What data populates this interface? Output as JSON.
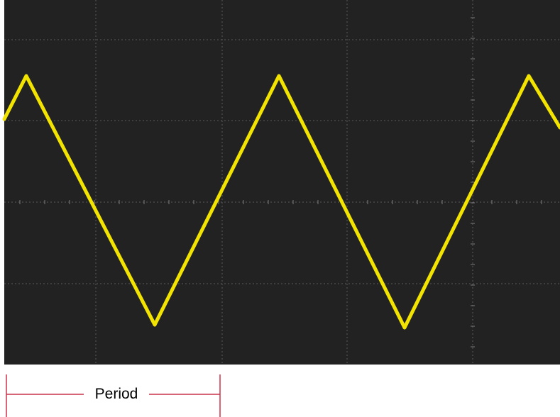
{
  "diagram": {
    "type": "oscilloscope-trace",
    "waveform": "triangle",
    "colors": {
      "screen": "#222222",
      "grid": "#5a5a5a",
      "trace": "#f2e300",
      "annotation": "#c8324a",
      "label_text": "#000000"
    },
    "period_label": "Period"
  }
}
